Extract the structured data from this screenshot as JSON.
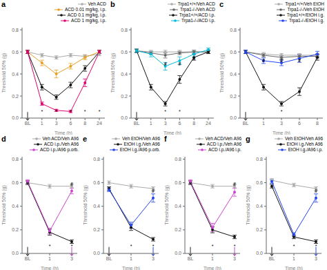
{
  "chart_data": [
    {
      "type": "line",
      "title": "a",
      "xlabel": "Time (h)",
      "ylabel": "Threshold 50% (g)",
      "categories": [
        "BL",
        "1",
        "3",
        "6",
        "8",
        "24"
      ],
      "marker": "circle",
      "legend": "upper right",
      "series": [
        {
          "name": "Veh ACD",
          "color": "#aaaaaa",
          "values": [
            0.6,
            0.57,
            0.55,
            0.57,
            0.56,
            0.58
          ],
          "errors": [
            0.015,
            0.015,
            0.015,
            0.015,
            0.015,
            0.015
          ]
        },
        {
          "name": "ACD 0.01 mg/kg, i.p.",
          "color": "#e8a020",
          "values": [
            0.6,
            0.5,
            0.4,
            0.47,
            0.55,
            0.6
          ],
          "errors": [
            0.015,
            0.025,
            0.035,
            0.025,
            0.02,
            0.015
          ]
        },
        {
          "name": "ACD 0.1 mg/kg, i.p.",
          "color": "#111111",
          "values": [
            0.6,
            0.28,
            0.19,
            0.3,
            0.45,
            0.6
          ],
          "errors": [
            0.015,
            0.025,
            0.02,
            0.025,
            0.025,
            0.015
          ]
        },
        {
          "name": "ACD 1 mg/kg, i.p.",
          "color": "#e0006e",
          "values": [
            0.6,
            0.13,
            0.07,
            0.06,
            0.32,
            0.6
          ],
          "errors": [
            0.015,
            0.015,
            0.01,
            0.01,
            0.035,
            0.015
          ]
        }
      ],
      "ylim": [
        0.0,
        0.82
      ],
      "yticks": [
        {
          "value": 0.0,
          "label": "0.0"
        },
        0.2,
        0.4,
        0.6,
        0.8
      ],
      "annotations": [
        {
          "text": "*",
          "x": "1",
          "y": 0.04
        },
        {
          "text": "*",
          "x": "3",
          "y": 0.04
        },
        {
          "text": "*",
          "x": "6",
          "y": 0.04
        },
        {
          "text": "*",
          "x": "8",
          "y": 0.04
        },
        {
          "text": "*",
          "x": "24",
          "y": 0.04
        }
      ],
      "arrows": [
        {
          "x": "BL",
          "y": 0.055,
          "y_end": -0.02,
          "color": "#222222"
        }
      ]
    },
    {
      "type": "line",
      "title": "b",
      "xlabel": "Time (h)",
      "ylabel": "Threshold 50% (g)",
      "categories": [
        "BL",
        "1",
        "3",
        "6",
        "8",
        "24"
      ],
      "marker": "circle",
      "legend": "upper right",
      "series": [
        {
          "name": "Trpa1+/+/Veh ACD",
          "color": "#aaaaaa",
          "values": [
            0.61,
            0.6,
            0.6,
            0.6,
            0.6,
            0.6
          ],
          "errors": [
            0.015,
            0.015,
            0.015,
            0.015,
            0.015,
            0.015
          ]
        },
        {
          "name": "Trpa1-/-/Veh ACD",
          "color": "#666666",
          "values": [
            0.61,
            0.59,
            0.57,
            0.59,
            0.6,
            0.6
          ],
          "errors": [
            0.015,
            0.015,
            0.025,
            0.015,
            0.015,
            0.015
          ]
        },
        {
          "name": "Trpa1+/+/ACD i.p.",
          "color": "#111111",
          "values": [
            0.61,
            0.28,
            0.13,
            0.35,
            0.55,
            0.6
          ],
          "errors": [
            0.015,
            0.025,
            0.02,
            0.035,
            0.025,
            0.015
          ]
        },
        {
          "name": "Trpa1-/-/ACD i.p.",
          "color": "#00bbdd",
          "values": [
            0.61,
            0.58,
            0.47,
            0.52,
            0.58,
            0.62
          ],
          "errors": [
            0.015,
            0.025,
            0.035,
            0.035,
            0.025,
            0.015
          ]
        }
      ],
      "ylim": [
        0.0,
        0.82
      ],
      "yticks": [
        {
          "value": 0.0,
          "label": "0.0"
        },
        0.2,
        0.4,
        0.6,
        0.8
      ],
      "annotations": [
        {
          "text": "*",
          "x": "3",
          "y": 0.04
        },
        {
          "text": "*",
          "x": "6",
          "y": 0.04
        },
        {
          "text": "#",
          "x": "3",
          "y": 0.47
        },
        {
          "text": "#",
          "x": "6",
          "y": 0.47
        },
        {
          "text": "#",
          "x": "8",
          "y": 0.52
        }
      ],
      "arrows": [
        {
          "x": "BL",
          "y": 0.055,
          "y_end": -0.02,
          "color": "#222222"
        }
      ]
    },
    {
      "type": "line",
      "title": "c",
      "xlabel": "Time (h)",
      "ylabel": "Threshold 50% (g)",
      "categories": [
        "BL",
        "1",
        "3",
        "6",
        "8"
      ],
      "marker": "circle",
      "legend": "upper right",
      "series": [
        {
          "name": "Trpa1+/+/Veh EtOH",
          "color": "#aaaaaa",
          "values": [
            0.6,
            0.58,
            0.57,
            0.57,
            0.57
          ],
          "errors": [
            0.015,
            0.015,
            0.015,
            0.015,
            0.015
          ]
        },
        {
          "name": "Trpa1-/-/Veh EtOH",
          "color": "#666666",
          "values": [
            0.6,
            0.57,
            0.55,
            0.56,
            0.56
          ],
          "errors": [
            0.015,
            0.015,
            0.015,
            0.015,
            0.015
          ]
        },
        {
          "name": "Trpa1+/+/EtOH i.g.",
          "color": "#111111",
          "values": [
            0.6,
            0.28,
            0.13,
            0.24,
            0.55
          ],
          "errors": [
            0.015,
            0.025,
            0.02,
            0.035,
            0.025
          ]
        },
        {
          "name": "Trpa1-/-/EtOH i.g.",
          "color": "#2244ee",
          "values": [
            0.6,
            0.52,
            0.5,
            0.54,
            0.58
          ],
          "errors": [
            0.015,
            0.025,
            0.025,
            0.035,
            0.025
          ]
        }
      ],
      "ylim": [
        0.0,
        0.82
      ],
      "yticks": [
        {
          "value": 0.0,
          "label": "0.0"
        },
        0.2,
        0.4,
        0.6,
        0.8
      ],
      "annotations": [
        {
          "text": "*",
          "x": "3",
          "y": 0.04
        },
        {
          "text": "#",
          "x": "1",
          "y": 0.5
        },
        {
          "text": "#",
          "x": "3",
          "y": 0.5
        },
        {
          "text": "#",
          "x": "6",
          "y": 0.5
        }
      ],
      "arrows": [
        {
          "x": "BL",
          "y": 0.055,
          "y_end": -0.02,
          "color": "#222222"
        }
      ]
    },
    {
      "type": "line",
      "title": "d",
      "xlabel": "Time (h)",
      "ylabel": "Threshold 50% (g)",
      "categories": [
        "BL",
        "1",
        "3"
      ],
      "marker": "circle",
      "legend": "upper right",
      "series": [
        {
          "name": "Veh ACD/Veh A96",
          "color": "#aaaaaa",
          "values": [
            0.6,
            0.57,
            0.57
          ],
          "errors": [
            0.015,
            0.015,
            0.015
          ]
        },
        {
          "name": "ACD i.p./Veh A96",
          "color": "#111111",
          "values": [
            0.6,
            0.18,
            0.1
          ],
          "errors": [
            0.015,
            0.025,
            0.015
          ]
        },
        {
          "name": "ACD i.p./A96 p.orb.",
          "color": "#cc44cc",
          "values": [
            0.61,
            0.19,
            0.53
          ],
          "errors": [
            0.015,
            0.025,
            0.025
          ]
        }
      ],
      "ylim": [
        0.0,
        0.82
      ],
      "yticks": [
        {
          "value": 0.0,
          "label": "0.0"
        },
        0.2,
        0.4,
        0.6,
        0.8
      ],
      "annotations": [
        {
          "text": "*",
          "x": "1",
          "y": 0.04
        },
        {
          "text": "*",
          "x": "3",
          "y": 0.04
        },
        {
          "text": "#",
          "x": "3",
          "y": 0.57
        }
      ],
      "arrows": [
        {
          "x": "BL",
          "y": 0.055,
          "y_end": -0.02,
          "color": "#222222"
        },
        {
          "x": "3",
          "y": 0.055,
          "y_end": -0.02,
          "color": "#cc44cc"
        }
      ]
    },
    {
      "type": "line",
      "title": "e",
      "xlabel": "Time (h)",
      "ylabel": "Threshold 50% (g)",
      "categories": [
        "BL",
        "1",
        "3"
      ],
      "marker": "circle",
      "legend": "upper right",
      "series": [
        {
          "name": "Veh EtOH/Veh A96",
          "color": "#aaaaaa",
          "values": [
            0.6,
            0.57,
            0.55
          ],
          "errors": [
            0.015,
            0.015,
            0.015
          ]
        },
        {
          "name": "EtOH i.g./Veh A96",
          "color": "#111111",
          "values": [
            0.55,
            0.22,
            0.12
          ],
          "errors": [
            0.015,
            0.025,
            0.015
          ]
        },
        {
          "name": "EtOH i.g./A96 p.orb.",
          "color": "#2244ee",
          "values": [
            0.54,
            0.24,
            0.47
          ],
          "errors": [
            0.015,
            0.025,
            0.035
          ]
        }
      ],
      "ylim": [
        0.0,
        0.82
      ],
      "yticks": [
        {
          "value": 0.0,
          "label": "0.0"
        },
        0.2,
        0.4,
        0.6,
        0.8
      ],
      "annotations": [
        {
          "text": "*",
          "x": "1",
          "y": 0.04
        },
        {
          "text": "*",
          "x": "3",
          "y": 0.04
        },
        {
          "text": "#",
          "x": "3",
          "y": 0.51
        }
      ],
      "arrows": [
        {
          "x": "BL",
          "y": 0.055,
          "y_end": -0.02,
          "color": "#222222"
        },
        {
          "x": "3",
          "y": 0.055,
          "y_end": -0.02,
          "color": "#2244ee"
        }
      ]
    },
    {
      "type": "line",
      "title": "f",
      "xlabel": "Time (h)",
      "ylabel": "Threshold 50% (g)",
      "categories": [
        "BL",
        "1",
        "3"
      ],
      "marker": "circle",
      "legend": "upper right",
      "series": [
        {
          "name": "Veh ACD/Veh A96",
          "color": "#aaaaaa",
          "values": [
            0.6,
            0.57,
            0.57
          ],
          "errors": [
            0.015,
            0.015,
            0.015
          ]
        },
        {
          "name": "ACD i.p./Veh A96",
          "color": "#111111",
          "values": [
            0.6,
            0.2,
            0.14
          ],
          "errors": [
            0.015,
            0.025,
            0.015
          ]
        },
        {
          "name": "ACD i.p./A96 i.p.",
          "color": "#cc44cc",
          "values": [
            0.61,
            0.22,
            0.52
          ],
          "errors": [
            0.015,
            0.035,
            0.035
          ]
        }
      ],
      "ylim": [
        0.0,
        0.82
      ],
      "yticks": [
        {
          "value": 0.0,
          "label": "0.0"
        },
        0.2,
        0.4,
        0.6,
        0.8
      ],
      "annotations": [
        {
          "text": "*",
          "x": "1",
          "y": 0.04
        },
        {
          "text": "*",
          "x": "3",
          "y": 0.04
        },
        {
          "text": "#",
          "x": "3",
          "y": 0.57
        }
      ],
      "arrows": [
        {
          "x": "BL",
          "y": 0.055,
          "y_end": -0.02,
          "color": "#222222"
        },
        {
          "x": "3",
          "y": 0.055,
          "y_end": -0.02,
          "color": "#cc44cc"
        }
      ]
    },
    {
      "type": "line",
      "title": "g",
      "xlabel": "Time (h)",
      "ylabel": "Threshold 50% (g)",
      "categories": [
        "BL",
        "1",
        "3"
      ],
      "marker": "circle",
      "legend": "upper right",
      "series": [
        {
          "name": "Veh EtOH/Veh A96",
          "color": "#aaaaaa",
          "values": [
            0.62,
            0.58,
            0.55
          ],
          "errors": [
            0.015,
            0.015,
            0.015
          ]
        },
        {
          "name": "EtOH i.g./Veh A96",
          "color": "#111111",
          "values": [
            0.57,
            0.14,
            0.1
          ],
          "errors": [
            0.015,
            0.015,
            0.015
          ]
        },
        {
          "name": "EtOH i.g./A96 i.p.",
          "color": "#2244ee",
          "values": [
            0.61,
            0.16,
            0.47
          ],
          "errors": [
            0.015,
            0.015,
            0.035
          ]
        }
      ],
      "ylim": [
        0.0,
        0.82
      ],
      "yticks": [
        {
          "value": 0.0,
          "label": "0.0"
        },
        0.2,
        0.4,
        0.6,
        0.8
      ],
      "annotations": [
        {
          "text": "*",
          "x": "1",
          "y": 0.04
        },
        {
          "text": "*",
          "x": "3",
          "y": 0.04
        },
        {
          "text": "#",
          "x": "3",
          "y": 0.51
        }
      ],
      "arrows": [
        {
          "x": "BL",
          "y": 0.055,
          "y_end": -0.02,
          "color": "#222222"
        },
        {
          "x": "3",
          "y": 0.055,
          "y_end": -0.02,
          "color": "#2244ee"
        }
      ]
    }
  ]
}
